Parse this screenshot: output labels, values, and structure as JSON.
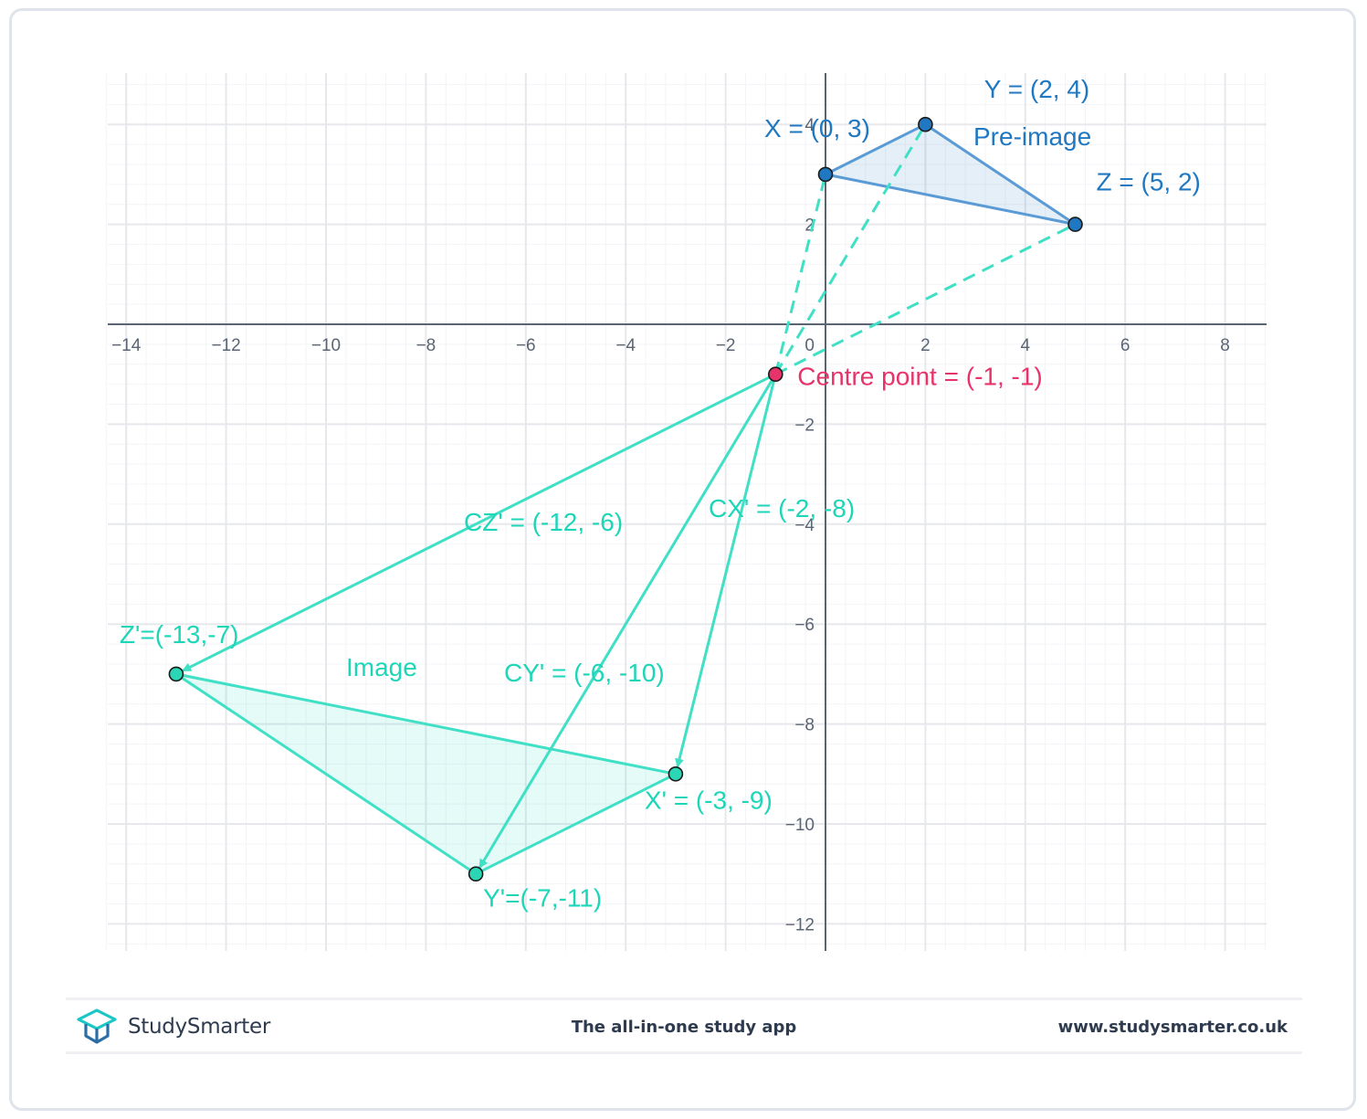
{
  "chart_data": {
    "type": "scatter",
    "title": "",
    "xlabel": "",
    "ylabel": "",
    "xlim": [
      -14.4,
      8.8
    ],
    "ylim": [
      -12.5,
      5.1
    ],
    "x_ticks": [
      -14,
      -12,
      -10,
      -8,
      -6,
      -4,
      -2,
      0,
      2,
      4,
      6,
      8
    ],
    "y_ticks": [
      -12,
      -10,
      -8,
      -6,
      -4,
      -2,
      2,
      4
    ],
    "x_tick_labels": [
      "−14",
      "−12",
      "−10",
      "−8",
      "−6",
      "−4",
      "−2",
      "0",
      "2",
      "4",
      "6",
      "8"
    ],
    "y_tick_labels": [
      "−12",
      "−10",
      "−8",
      "−6",
      "−4",
      "−2",
      "2",
      "4"
    ],
    "grid": true,
    "minor_grid": true,
    "colors": {
      "preimage": "#1f78c1",
      "image": "#3fe0c5",
      "image_text": "#1dd6b8",
      "centre": "#e8336a",
      "axis": "#5b6472",
      "grid": "#e6e8ec"
    },
    "points": {
      "X": {
        "x": 0,
        "y": 3,
        "label": "X = (0, 3)"
      },
      "Y": {
        "x": 2,
        "y": 4,
        "label": "Y = (2, 4)"
      },
      "Z": {
        "x": 5,
        "y": 2,
        "label": "Z = (5, 2)"
      },
      "C": {
        "x": -1,
        "y": -1,
        "label": "Centre point = (-1, -1)"
      },
      "X'": {
        "x": -3,
        "y": -9,
        "label": "X' = (-3, -9)"
      },
      "Y'": {
        "x": -7,
        "y": -11,
        "label": "Y'=(-7,-11)"
      },
      "Z'": {
        "x": -13,
        "y": -7,
        "label": "Z'=(-13,-7)"
      }
    },
    "polygons": [
      {
        "name": "Pre-image",
        "vertices": [
          "X",
          "Y",
          "Z"
        ]
      },
      {
        "name": "Image",
        "vertices": [
          "Z'",
          "X'",
          "Y'"
        ]
      }
    ],
    "dashed_lines": [
      [
        "C",
        "X"
      ],
      [
        "C",
        "Y"
      ],
      [
        "C",
        "Z"
      ]
    ],
    "vectors": [
      {
        "from": "C",
        "to": "X'",
        "label": "CX' = (-2, -8)"
      },
      {
        "from": "C",
        "to": "Y'",
        "label": "CY' = (-6, -10)"
      },
      {
        "from": "C",
        "to": "Z'",
        "label": "CZ' = (-12, -6)"
      }
    ]
  },
  "footer": {
    "brand": "StudySmarter",
    "tagline": "The all-in-one study app",
    "website": "www.studysmarter.co.uk"
  }
}
